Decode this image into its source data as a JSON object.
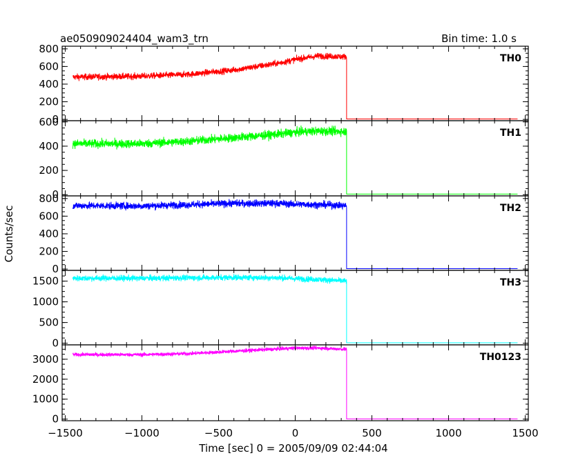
{
  "header": {
    "title": "ae050909024404_wam3_trn",
    "bin_time": "Bin time: 1.0 s"
  },
  "chart_data": {
    "type": "line",
    "title": "ae050909024404_wam3_trn",
    "xlabel": "Time [sec] 0 = 2005/09/09 02:44:04",
    "ylabel": "Counts/sec",
    "xlim": [
      -1520,
      1520
    ],
    "x_ticks": [
      -1500,
      -1000,
      -500,
      0,
      500,
      1000,
      1500
    ],
    "x_tick_labels": [
      "−1500",
      "−1000",
      "−500",
      "0",
      "500",
      "1000",
      "1500"
    ],
    "drop_time": 335,
    "data_start": -1450,
    "data_end": 1450,
    "panels": [
      {
        "name": "TH0",
        "color": "#ff0000",
        "ylim": [
          -15,
          830
        ],
        "yticks": [
          0,
          200,
          400,
          600,
          800
        ],
        "trend": {
          "x": [
            -1450,
            -1000,
            -700,
            -400,
            -100,
            0,
            150,
            335
          ],
          "y": [
            480,
            490,
            510,
            560,
            640,
            680,
            720,
            710
          ]
        },
        "noise": 35,
        "after_drop": 5
      },
      {
        "name": "TH1",
        "color": "#00ff00",
        "ylim": [
          -10,
          610
        ],
        "yticks": [
          0,
          200,
          400,
          600
        ],
        "trend": {
          "x": [
            -1450,
            -1000,
            -700,
            -400,
            -100,
            0,
            150,
            335
          ],
          "y": [
            420,
            420,
            440,
            470,
            500,
            515,
            525,
            520
          ]
        },
        "noise": 35,
        "after_drop": 5
      },
      {
        "name": "TH2",
        "color": "#0000ff",
        "ylim": [
          -15,
          830
        ],
        "yticks": [
          0,
          200,
          400,
          600,
          800
        ],
        "trend": {
          "x": [
            -1450,
            -1000,
            -700,
            -400,
            -100,
            0,
            150,
            335
          ],
          "y": [
            720,
            715,
            730,
            745,
            745,
            735,
            730,
            720
          ]
        },
        "noise": 40,
        "after_drop": 5
      },
      {
        "name": "TH3",
        "color": "#00ffff",
        "ylim": [
          -40,
          1760
        ],
        "yticks": [
          0,
          500,
          1000,
          1500
        ],
        "trend": {
          "x": [
            -1450,
            -1000,
            -700,
            -400,
            -100,
            0,
            150,
            335
          ],
          "y": [
            1570,
            1570,
            1580,
            1590,
            1580,
            1560,
            1540,
            1500
          ]
        },
        "noise": 70,
        "after_drop": 10
      },
      {
        "name": "TH0123",
        "color": "#ff00ff",
        "ylim": [
          -80,
          3720
        ],
        "yticks": [
          0,
          1000,
          2000,
          3000
        ],
        "trend": {
          "x": [
            -1450,
            -1000,
            -700,
            -400,
            -100,
            0,
            150,
            335
          ],
          "y": [
            3230,
            3230,
            3280,
            3400,
            3520,
            3560,
            3560,
            3500
          ]
        },
        "noise": 90,
        "after_drop": 10
      }
    ]
  }
}
